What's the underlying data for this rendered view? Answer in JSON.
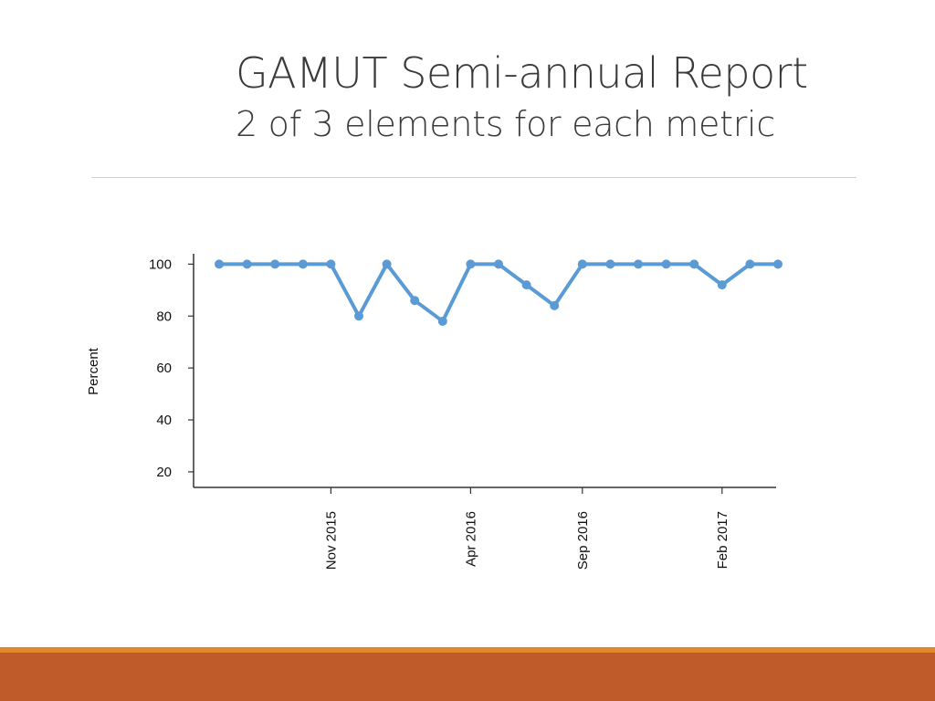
{
  "slide": {
    "title": "GAMUT Semi-annual Report",
    "subtitle": "2 of 3 elements for each metric"
  },
  "colors": {
    "line": "#5b9bd5",
    "footer_thin": "#e0882a",
    "footer_thick": "#bf5a2b",
    "rule": "#d0d0d0"
  },
  "chart_data": {
    "type": "line",
    "title": "",
    "xlabel": "",
    "ylabel": "Percent",
    "ylim": [
      14,
      104
    ],
    "yticks": [
      20,
      40,
      60,
      80,
      100
    ],
    "x": [
      "Jun 2015",
      "Jul 2015",
      "Aug 2015",
      "Sep 2015",
      "Nov 2015",
      "Dec 2015",
      "Jan 2016",
      "Feb 2016",
      "Mar 2016",
      "Apr 2016",
      "May 2016",
      "Jun 2016",
      "Jul 2016",
      "Sep 2016",
      "Oct 2016",
      "Nov 2016",
      "Dec 2016",
      "Jan 2017",
      "Feb 2017",
      "Mar 2017",
      "Apr 2017"
    ],
    "x_tick_labels": [
      "Nov 2015",
      "Apr 2016",
      "Sep 2016",
      "Feb 2017"
    ],
    "x_tick_positions": [
      "Nov 2015",
      "Apr 2016",
      "Sep 2016",
      "Feb 2017"
    ],
    "series": [
      {
        "values": [
          100,
          100,
          100,
          100,
          100,
          80,
          100,
          86,
          78,
          100,
          100,
          92,
          84,
          100,
          100,
          100,
          100,
          100,
          92,
          100,
          100
        ]
      }
    ],
    "grid": false,
    "legend": "none"
  }
}
